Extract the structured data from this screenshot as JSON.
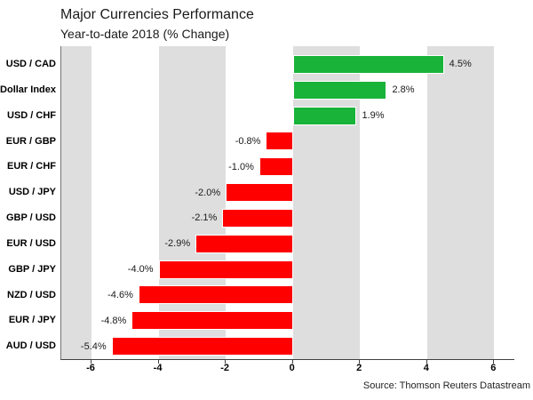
{
  "source": "Source: Thomson Reuters Datastream",
  "colors": {
    "positive_bar": "#19B33A",
    "negative_bar": "#FF0000",
    "band_gray": "#DEDEDE",
    "axis": "#404040",
    "text": "#1A1A1A"
  },
  "chart_data": {
    "type": "bar",
    "orientation": "horizontal",
    "title": "Major Currencies Performance",
    "subtitle": "Year-to-date 2018 (% Change)",
    "categories": [
      "USD / CAD",
      "Dollar Index",
      "USD / CHF",
      "EUR / GBP",
      "EUR / CHF",
      "USD / JPY",
      "GBP / USD",
      "EUR / USD",
      "GBP / JPY",
      "NZD / USD",
      "EUR / JPY",
      "AUD / USD"
    ],
    "values": [
      4.5,
      2.8,
      1.9,
      -0.8,
      -1.0,
      -2.0,
      -2.1,
      -2.9,
      -4.0,
      -4.6,
      -4.8,
      -5.4
    ],
    "value_labels": [
      "4.5%",
      "2.8%",
      "1.9%",
      "-0.8%",
      "-1.0%",
      "-2.0%",
      "-2.1%",
      "-2.9%",
      "-4.0%",
      "-4.6%",
      "-4.8%",
      "-5.4%"
    ],
    "xlim": [
      -6.9,
      6.6
    ],
    "xticks": [
      -6,
      -4,
      -2,
      0,
      2,
      4,
      6
    ],
    "xtick_labels": [
      "-6",
      "-4",
      "-2",
      "0",
      "2",
      "4",
      "6"
    ],
    "legend": "none",
    "grid": "alternating 2-unit vertical gray bands aligned to even axis values"
  }
}
